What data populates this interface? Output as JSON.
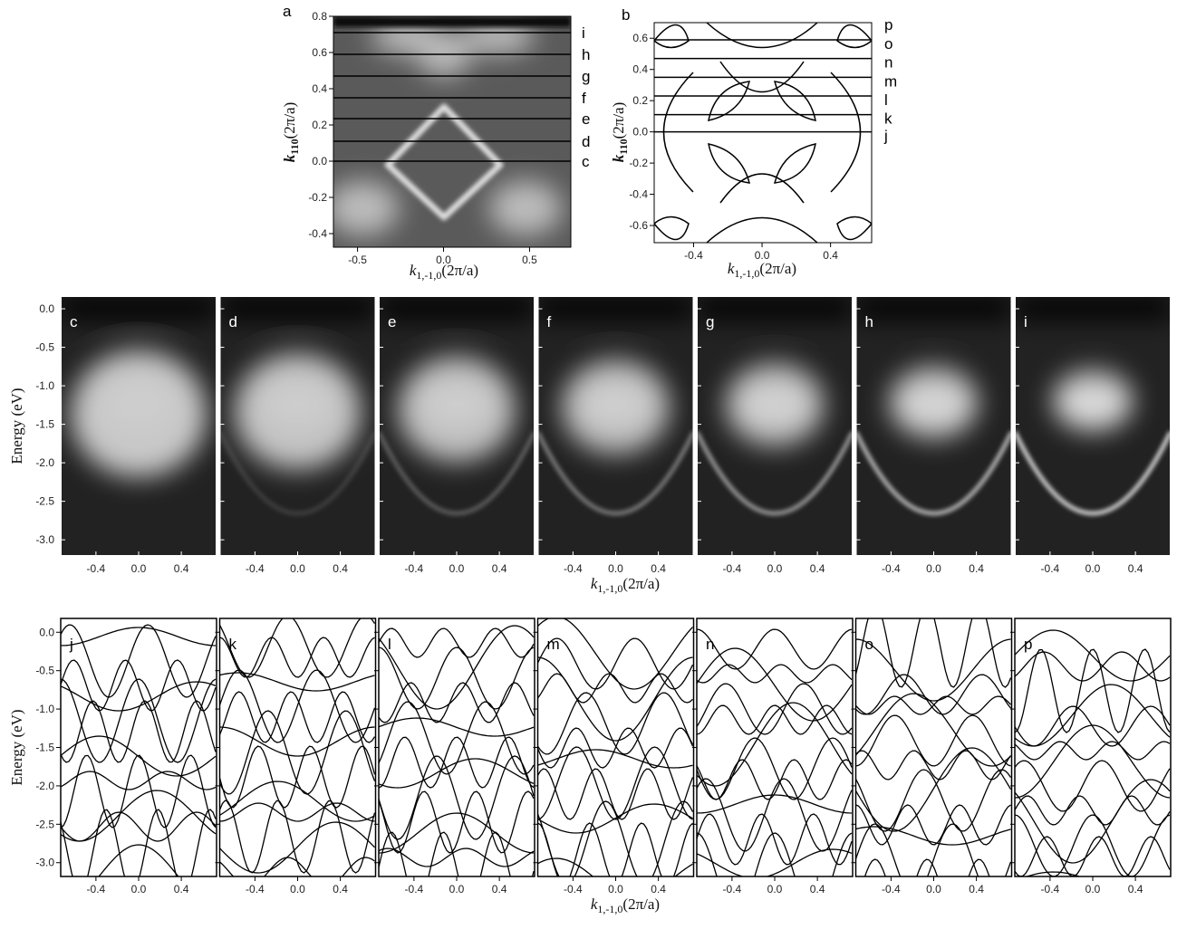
{
  "panel_a": {
    "label": "a",
    "xlim": [
      -0.64,
      0.74
    ],
    "ylim": [
      -0.475,
      0.8
    ],
    "xticks": [
      -0.5,
      {
        "value": 0,
        "label": "0.0"
      },
      0.5
    ],
    "yticks": [
      0.8,
      0.6,
      0.4,
      0.2,
      {
        "value": 0,
        "label": "0.0"
      },
      -0.2,
      -0.4
    ],
    "xlabel": {
      "symbol": "k",
      "subscript": "1,-1,0",
      "unit": "(2π/a)"
    },
    "ylabel": {
      "symbol": "k",
      "subscript": "110",
      "unit": "(2π/a)"
    },
    "cuts": [
      {
        "name": "c",
        "k": 0.0
      },
      {
        "name": "d",
        "k": 0.11
      },
      {
        "name": "e",
        "k": 0.235
      },
      {
        "name": "f",
        "k": 0.35
      },
      {
        "name": "g",
        "k": 0.47
      },
      {
        "name": "h",
        "k": 0.59
      },
      {
        "name": "i",
        "k": 0.71
      }
    ]
  },
  "panel_b": {
    "label": "b",
    "xlim": [
      -0.63,
      0.64
    ],
    "ylim": [
      -0.71,
      0.7
    ],
    "xticks": [
      -0.4,
      {
        "value": 0,
        "label": "0.0"
      },
      0.4
    ],
    "yticks": [
      0.6,
      0.4,
      0.2,
      {
        "value": 0,
        "label": "0.0"
      },
      -0.2,
      -0.4,
      -0.6
    ],
    "xlabel": {
      "symbol": "k",
      "subscript": "1,-1,0",
      "unit": "(2π/a)"
    },
    "ylabel": {
      "symbol": "k",
      "subscript": "110",
      "unit": "(2π/a)"
    },
    "cuts": [
      {
        "name": "j",
        "k": 0.0
      },
      {
        "name": "k",
        "k": 0.11
      },
      {
        "name": "l",
        "k": 0.23
      },
      {
        "name": "m",
        "k": 0.35
      },
      {
        "name": "n",
        "k": 0.47
      },
      {
        "name": "o",
        "k": 0.59
      }
    ],
    "extra_label": "p"
  },
  "energy_maps": {
    "xlim": [
      -0.73,
      0.73
    ],
    "ylim": [
      -3.21,
      0.165
    ],
    "xticks": [
      -0.4,
      {
        "value": 0,
        "label": "0.0"
      },
      0.4
    ],
    "yticks": [
      {
        "value": 0,
        "label": "0.0"
      },
      -0.5,
      {
        "value": -1,
        "label": "-1.0"
      },
      -1.5,
      {
        "value": -2,
        "label": "-2.0"
      },
      -2.5,
      {
        "value": -3,
        "label": "-3.0"
      }
    ],
    "ylabel": "Energy (eV)",
    "xlabel": {
      "symbol": "k",
      "subscript": "1,-1,0",
      "unit": "(2π/a)"
    },
    "panels": [
      "c",
      "d",
      "e",
      "f",
      "g",
      "h",
      "i"
    ]
  },
  "band_calcs": {
    "xlim": [
      -0.73,
      0.73
    ],
    "ylim": [
      -3.18,
      0.18
    ],
    "xticks": [
      -0.4,
      {
        "value": 0,
        "label": "0.0"
      },
      0.4
    ],
    "yticks": [
      {
        "value": 0,
        "label": "0.0"
      },
      -0.5,
      {
        "value": -1,
        "label": "-1.0"
      },
      -1.5,
      {
        "value": -2,
        "label": "-2.0"
      },
      -2.5,
      {
        "value": -3,
        "label": "-3.0"
      }
    ],
    "ylabel": "Energy (eV)",
    "xlabel": {
      "symbol": "k",
      "subscript": "1,-1,0",
      "unit": "(2π/a)"
    },
    "panels": [
      "j",
      "k",
      "l",
      "m",
      "n",
      "o",
      "p"
    ]
  }
}
